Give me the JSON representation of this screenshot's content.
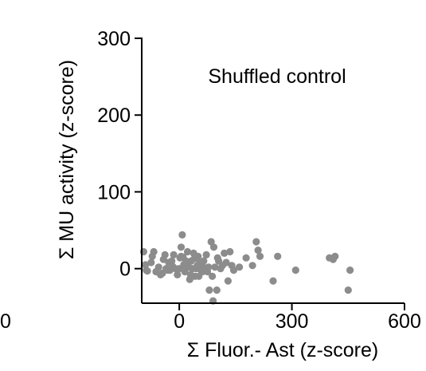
{
  "chart_data": {
    "type": "scatter",
    "annotation": "Shuffled control",
    "xlabel": "Σ Fluor.- Ast (z-score)",
    "ylabel": "Σ MU activity (z-score)",
    "xlim": [
      -100,
      600
    ],
    "ylim": [
      -45,
      300
    ],
    "x_ticks": [
      0,
      300,
      600
    ],
    "x_tick_labels": [
      "0",
      "300",
      "600"
    ],
    "y_ticks": [
      0,
      100,
      200,
      300
    ],
    "y_tick_labels": [
      "0",
      "100",
      "200",
      "300"
    ],
    "stray_tick_label": "0",
    "grid": false,
    "colors": {
      "points": "#8c8c8c",
      "axes": "#000000",
      "background": "#ffffff"
    },
    "series": [
      {
        "points": [
          [
            -95,
            22
          ],
          [
            -90,
            5
          ],
          [
            -88,
            -2
          ],
          [
            -85,
            -3
          ],
          [
            -75,
            8
          ],
          [
            -72,
            16
          ],
          [
            -68,
            22
          ],
          [
            -62,
            -4
          ],
          [
            -55,
            2
          ],
          [
            -50,
            -8
          ],
          [
            -45,
            -6
          ],
          [
            -42,
            12
          ],
          [
            -38,
            18
          ],
          [
            -35,
            0
          ],
          [
            -30,
            -2
          ],
          [
            -28,
            8
          ],
          [
            -25,
            -2
          ],
          [
            -20,
            10
          ],
          [
            -18,
            3
          ],
          [
            -15,
            18
          ],
          [
            -10,
            0
          ],
          [
            -5,
            -8
          ],
          [
            0,
            0
          ],
          [
            2,
            14
          ],
          [
            5,
            28
          ],
          [
            5,
            16
          ],
          [
            8,
            44
          ],
          [
            10,
            15
          ],
          [
            12,
            5
          ],
          [
            15,
            2
          ],
          [
            15,
            -4
          ],
          [
            18,
            10
          ],
          [
            20,
            4
          ],
          [
            22,
            22
          ],
          [
            25,
            2
          ],
          [
            28,
            -14
          ],
          [
            30,
            -8
          ],
          [
            32,
            10
          ],
          [
            35,
            0
          ],
          [
            38,
            20
          ],
          [
            40,
            13
          ],
          [
            42,
            -10
          ],
          [
            45,
            0
          ],
          [
            48,
            4
          ],
          [
            50,
            16
          ],
          [
            52,
            -10
          ],
          [
            55,
            8
          ],
          [
            58,
            -2
          ],
          [
            60,
            5
          ],
          [
            62,
            -4
          ],
          [
            65,
            10
          ],
          [
            68,
            1
          ],
          [
            72,
            18
          ],
          [
            75,
            -4
          ],
          [
            78,
            2
          ],
          [
            80,
            -28
          ],
          [
            85,
            35
          ],
          [
            88,
            -10
          ],
          [
            90,
            -42
          ],
          [
            92,
            28
          ],
          [
            95,
            2
          ],
          [
            100,
            -28
          ],
          [
            102,
            14
          ],
          [
            105,
            10
          ],
          [
            110,
            0
          ],
          [
            115,
            4
          ],
          [
            120,
            20
          ],
          [
            125,
            8
          ],
          [
            130,
            -16
          ],
          [
            135,
            22
          ],
          [
            140,
            4
          ],
          [
            145,
            -2
          ],
          [
            160,
            2
          ],
          [
            178,
            14
          ],
          [
            195,
            4
          ],
          [
            205,
            35
          ],
          [
            210,
            24
          ],
          [
            215,
            16
          ],
          [
            250,
            -16
          ],
          [
            262,
            16
          ],
          [
            310,
            -2
          ],
          [
            400,
            14
          ],
          [
            410,
            12
          ],
          [
            415,
            16
          ],
          [
            450,
            -28
          ],
          [
            455,
            -2
          ]
        ]
      }
    ]
  }
}
